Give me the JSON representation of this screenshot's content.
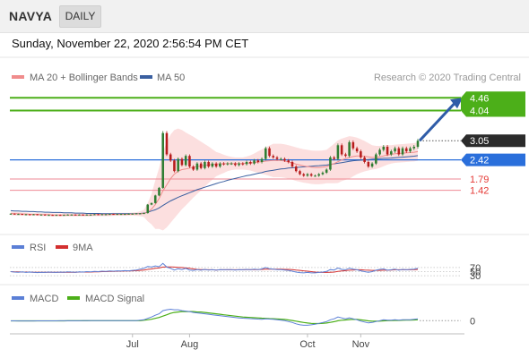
{
  "header": {
    "symbol": "NAVYA",
    "period": "DAILY",
    "datetime": "Sunday, November 22, 2020 2:56:54 PM CET"
  },
  "colors": {
    "up": "#2f7d32",
    "down": "#b71c1c",
    "resistance": "#4caf19",
    "support": "#2a6fdb",
    "stop": "#ef8a94",
    "bollinger": "#fbd4d4",
    "ma20": "#f08c8c",
    "ma50": "#3a5fa0",
    "rsi": "#5b7fd6",
    "rsi_ma": "#d32f2f",
    "macd": "#5b7fd6",
    "macd_signal": "#4caf19",
    "price_tag": "#2b2b2b",
    "arrow": "#2f5ca8"
  },
  "credit": "Research © 2020 Trading Central",
  "legend_main": [
    {
      "label": "MA 20 + Bollinger Bands",
      "color": "#f08c8c"
    },
    {
      "label": "MA 50",
      "color": "#3a5fa0"
    }
  ],
  "legend_rsi": [
    {
      "label": "RSI",
      "color": "#5b7fd6"
    },
    {
      "label": "9MA",
      "color": "#d32f2f"
    }
  ],
  "legend_macd": [
    {
      "label": "MACD",
      "color": "#5b7fd6"
    },
    {
      "label": "MACD Signal",
      "color": "#4caf19"
    }
  ],
  "chart_data": [
    {
      "type": "candlestick",
      "title": "NAVYA",
      "x_tick_labels": [
        "Jul",
        "Aug",
        "Oct",
        "Nov"
      ],
      "x_tick_indices": [
        32,
        47,
        78,
        92
      ],
      "ylim": [
        0.85,
        4.85
      ],
      "current_price": "3.05",
      "levels": [
        {
          "value": 4.46,
          "label": "4.46",
          "type": "resistance"
        },
        {
          "value": 4.04,
          "label": "4.04",
          "type": "resistance"
        },
        {
          "value": 2.42,
          "label": "2.42",
          "type": "pivot"
        },
        {
          "value": 1.79,
          "label": "1.79",
          "type": "support"
        },
        {
          "value": 1.42,
          "label": "1.42",
          "type": "support"
        }
      ],
      "close": [
        0.65,
        0.64,
        0.64,
        0.63,
        0.63,
        0.62,
        0.63,
        0.62,
        0.62,
        0.61,
        0.61,
        0.6,
        0.61,
        0.6,
        0.61,
        0.62,
        0.62,
        0.61,
        0.62,
        0.61,
        0.62,
        0.62,
        0.63,
        0.62,
        0.63,
        0.63,
        0.64,
        0.63,
        0.64,
        0.64,
        0.64,
        0.65,
        0.65,
        0.66,
        0.66,
        0.67,
        0.95,
        1.0,
        1.25,
        1.5,
        3.3,
        2.6,
        2.4,
        2.05,
        2.45,
        2.25,
        2.55,
        2.2,
        2.1,
        2.3,
        2.15,
        2.35,
        2.2,
        2.3,
        2.2,
        2.3,
        2.28,
        2.3,
        2.3,
        2.25,
        2.3,
        2.28,
        2.35,
        2.3,
        2.4,
        2.35,
        2.45,
        2.8,
        2.55,
        2.5,
        2.45,
        2.45,
        2.4,
        2.35,
        2.2,
        2.05,
        1.95,
        1.9,
        1.95,
        1.9,
        1.9,
        1.95,
        2.0,
        2.1,
        2.5,
        2.45,
        2.9,
        2.6,
        2.55,
        3.0,
        2.8,
        2.7,
        2.5,
        2.35,
        2.2,
        2.3,
        2.6,
        2.75,
        2.85,
        2.6,
        2.7,
        2.8,
        2.6,
        2.8,
        2.7,
        2.8,
        2.85,
        3.05
      ],
      "ma20": [
        0.66,
        0.65,
        0.65,
        0.64,
        0.64,
        0.63,
        0.63,
        0.63,
        0.62,
        0.62,
        0.62,
        0.61,
        0.61,
        0.61,
        0.61,
        0.61,
        0.61,
        0.61,
        0.61,
        0.61,
        0.61,
        0.61,
        0.62,
        0.62,
        0.62,
        0.62,
        0.62,
        0.63,
        0.63,
        0.63,
        0.63,
        0.63,
        0.64,
        0.64,
        0.65,
        0.66,
        0.7,
        0.8,
        0.95,
        1.15,
        1.4,
        1.6,
        1.8,
        1.95,
        2.05,
        2.1,
        2.12,
        2.15,
        2.18,
        2.2,
        2.22,
        2.24,
        2.26,
        2.27,
        2.28,
        2.29,
        2.29,
        2.3,
        2.3,
        2.3,
        2.3,
        2.3,
        2.31,
        2.32,
        2.33,
        2.35,
        2.36,
        2.38,
        2.39,
        2.4,
        2.4,
        2.4,
        2.38,
        2.35,
        2.32,
        2.28,
        2.25,
        2.22,
        2.2,
        2.18,
        2.17,
        2.17,
        2.18,
        2.2,
        2.25,
        2.3,
        2.36,
        2.42,
        2.46,
        2.5,
        2.53,
        2.55,
        2.55,
        2.54,
        2.52,
        2.5,
        2.5,
        2.52,
        2.55,
        2.58,
        2.6,
        2.62,
        2.63,
        2.64,
        2.65,
        2.66,
        2.67,
        2.69
      ],
      "ma50": [
        0.75,
        0.74,
        0.74,
        0.73,
        0.73,
        0.72,
        0.72,
        0.71,
        0.71,
        0.7,
        0.7,
        0.69,
        0.69,
        0.69,
        0.68,
        0.68,
        0.68,
        0.67,
        0.67,
        0.67,
        0.66,
        0.66,
        0.66,
        0.66,
        0.65,
        0.65,
        0.65,
        0.65,
        0.65,
        0.65,
        0.65,
        0.65,
        0.65,
        0.65,
        0.66,
        0.67,
        0.7,
        0.74,
        0.78,
        0.84,
        0.92,
        1.0,
        1.07,
        1.13,
        1.19,
        1.24,
        1.29,
        1.34,
        1.39,
        1.44,
        1.48,
        1.52,
        1.56,
        1.6,
        1.64,
        1.68,
        1.71,
        1.75,
        1.78,
        1.81,
        1.84,
        1.87,
        1.9,
        1.92,
        1.95,
        1.98,
        2.0,
        2.04,
        2.06,
        2.08,
        2.1,
        2.12,
        2.13,
        2.15,
        2.16,
        2.17,
        2.18,
        2.19,
        2.2,
        2.21,
        2.22,
        2.23,
        2.24,
        2.25,
        2.27,
        2.29,
        2.31,
        2.33,
        2.35,
        2.37,
        2.39,
        2.4,
        2.41,
        2.42,
        2.43,
        2.44,
        2.45,
        2.46,
        2.47,
        2.47,
        2.48,
        2.49,
        2.5,
        2.51,
        2.52,
        2.53,
        2.54,
        2.56
      ],
      "bb_width": [
        0.06,
        0.06,
        0.06,
        0.05,
        0.05,
        0.05,
        0.05,
        0.05,
        0.05,
        0.05,
        0.05,
        0.05,
        0.05,
        0.05,
        0.05,
        0.05,
        0.05,
        0.05,
        0.05,
        0.05,
        0.05,
        0.05,
        0.05,
        0.05,
        0.05,
        0.05,
        0.05,
        0.05,
        0.05,
        0.05,
        0.05,
        0.05,
        0.05,
        0.06,
        0.08,
        0.12,
        0.3,
        0.5,
        0.8,
        1.0,
        1.3,
        1.4,
        1.45,
        1.45,
        1.4,
        1.3,
        1.2,
        1.1,
        1.0,
        0.9,
        0.8,
        0.7,
        0.6,
        0.5,
        0.4,
        0.35,
        0.3,
        0.25,
        0.22,
        0.2,
        0.2,
        0.2,
        0.22,
        0.25,
        0.3,
        0.35,
        0.4,
        0.45,
        0.5,
        0.55,
        0.55,
        0.55,
        0.55,
        0.55,
        0.55,
        0.55,
        0.55,
        0.55,
        0.55,
        0.55,
        0.55,
        0.55,
        0.55,
        0.55,
        0.6,
        0.65,
        0.7,
        0.7,
        0.7,
        0.7,
        0.65,
        0.6,
        0.55,
        0.5,
        0.45,
        0.4,
        0.38,
        0.36,
        0.34,
        0.32,
        0.3,
        0.3,
        0.3,
        0.3,
        0.3,
        0.3,
        0.3,
        0.3
      ],
      "forecast_target": 4.46
    },
    {
      "type": "line",
      "title": "RSI",
      "y_tick_labels": [
        "70",
        "50",
        "30"
      ],
      "y_ticks": [
        70,
        50,
        30
      ],
      "ylim": [
        0,
        100
      ],
      "series": [
        {
          "name": "RSI",
          "values": [
            50,
            48,
            47,
            49,
            46,
            48,
            47,
            45,
            47,
            46,
            48,
            47,
            46,
            48,
            47,
            49,
            48,
            47,
            49,
            48,
            50,
            49,
            51,
            50,
            52,
            51,
            53,
            52,
            54,
            53,
            55,
            54,
            56,
            58,
            62,
            66,
            75,
            72,
            78,
            74,
            90,
            72,
            66,
            58,
            64,
            60,
            66,
            58,
            56,
            60,
            57,
            61,
            58,
            60,
            57,
            60,
            59,
            60,
            60,
            58,
            60,
            59,
            61,
            59,
            62,
            60,
            63,
            70,
            64,
            62,
            60,
            60,
            58,
            56,
            52,
            48,
            45,
            44,
            46,
            44,
            44,
            46,
            48,
            51,
            60,
            58,
            68,
            61,
            59,
            67,
            62,
            59,
            54,
            50,
            47,
            50,
            57,
            61,
            63,
            57,
            59,
            62,
            57,
            61,
            59,
            61,
            62,
            66
          ]
        },
        {
          "name": "9MA",
          "values": [
            50,
            49,
            49,
            48,
            48,
            48,
            47,
            47,
            47,
            47,
            47,
            47,
            47,
            47,
            47,
            47,
            47,
            47,
            48,
            48,
            48,
            48,
            49,
            49,
            50,
            50,
            51,
            51,
            52,
            52,
            53,
            53,
            54,
            55,
            56,
            58,
            61,
            63,
            66,
            68,
            72,
            73,
            73,
            72,
            71,
            70,
            68,
            66,
            63,
            61,
            60,
            60,
            59,
            59,
            58,
            59,
            59,
            59,
            59,
            59,
            59,
            59,
            60,
            60,
            60,
            60,
            61,
            62,
            62,
            62,
            62,
            62,
            61,
            61,
            60,
            58,
            56,
            54,
            52,
            50,
            48,
            47,
            46,
            46,
            47,
            48,
            51,
            53,
            55,
            57,
            58,
            59,
            59,
            58,
            57,
            56,
            56,
            56,
            57,
            57,
            58,
            59,
            59,
            59,
            59,
            59,
            60,
            61
          ]
        }
      ]
    },
    {
      "type": "line",
      "title": "MACD",
      "y_tick_labels": [
        "0"
      ],
      "y_ticks": [
        0
      ],
      "ylim": [
        -0.25,
        0.3
      ],
      "series": [
        {
          "name": "MACD",
          "values": [
            -0.005,
            -0.005,
            -0.006,
            -0.006,
            -0.006,
            -0.006,
            -0.006,
            -0.005,
            -0.005,
            -0.005,
            -0.004,
            -0.004,
            -0.004,
            -0.003,
            -0.003,
            -0.003,
            -0.002,
            -0.002,
            -0.002,
            -0.001,
            -0.001,
            0.0,
            0.0,
            0.0,
            0.0,
            0.0,
            0.0,
            0.0,
            0.0,
            0.0,
            0.0,
            0.0,
            0.0,
            0.0,
            0.01,
            0.02,
            0.05,
            0.08,
            0.12,
            0.15,
            0.22,
            0.24,
            0.25,
            0.24,
            0.24,
            0.22,
            0.21,
            0.2,
            0.18,
            0.17,
            0.16,
            0.15,
            0.14,
            0.13,
            0.12,
            0.11,
            0.1,
            0.09,
            0.08,
            0.07,
            0.06,
            0.055,
            0.05,
            0.045,
            0.04,
            0.035,
            0.03,
            0.04,
            0.035,
            0.03,
            0.02,
            0.01,
            0.0,
            -0.02,
            -0.04,
            -0.07,
            -0.09,
            -0.1,
            -0.1,
            -0.09,
            -0.08,
            -0.06,
            -0.04,
            -0.02,
            0.02,
            0.04,
            0.08,
            0.06,
            0.04,
            0.06,
            0.04,
            0.02,
            -0.01,
            -0.03,
            -0.05,
            -0.04,
            -0.02,
            0.0,
            0.02,
            0.01,
            0.01,
            0.02,
            0.01,
            0.02,
            0.02,
            0.02,
            0.03,
            0.04
          ]
        },
        {
          "name": "MACD Signal",
          "values": [
            -0.004,
            -0.004,
            -0.005,
            -0.005,
            -0.005,
            -0.005,
            -0.005,
            -0.005,
            -0.005,
            -0.005,
            -0.005,
            -0.004,
            -0.004,
            -0.004,
            -0.004,
            -0.003,
            -0.003,
            -0.003,
            -0.002,
            -0.002,
            -0.002,
            -0.001,
            -0.001,
            -0.001,
            0.0,
            0.0,
            0.0,
            0.0,
            0.0,
            0.0,
            0.0,
            0.0,
            0.0,
            0.0,
            0.0,
            0.01,
            0.02,
            0.03,
            0.05,
            0.07,
            0.1,
            0.13,
            0.16,
            0.18,
            0.19,
            0.2,
            0.2,
            0.2,
            0.2,
            0.19,
            0.19,
            0.18,
            0.17,
            0.16,
            0.15,
            0.14,
            0.13,
            0.12,
            0.11,
            0.1,
            0.09,
            0.08,
            0.075,
            0.07,
            0.065,
            0.06,
            0.055,
            0.05,
            0.045,
            0.043,
            0.038,
            0.032,
            0.026,
            0.016,
            0.004,
            -0.01,
            -0.026,
            -0.04,
            -0.052,
            -0.06,
            -0.064,
            -0.064,
            -0.06,
            -0.052,
            -0.038,
            -0.022,
            -0.002,
            0.01,
            0.016,
            0.024,
            0.028,
            0.026,
            0.018,
            0.008,
            -0.004,
            -0.011,
            -0.013,
            -0.01,
            -0.004,
            -0.001,
            0.001,
            0.005,
            0.006,
            0.009,
            0.011,
            0.013,
            0.016,
            0.02
          ]
        }
      ]
    }
  ]
}
